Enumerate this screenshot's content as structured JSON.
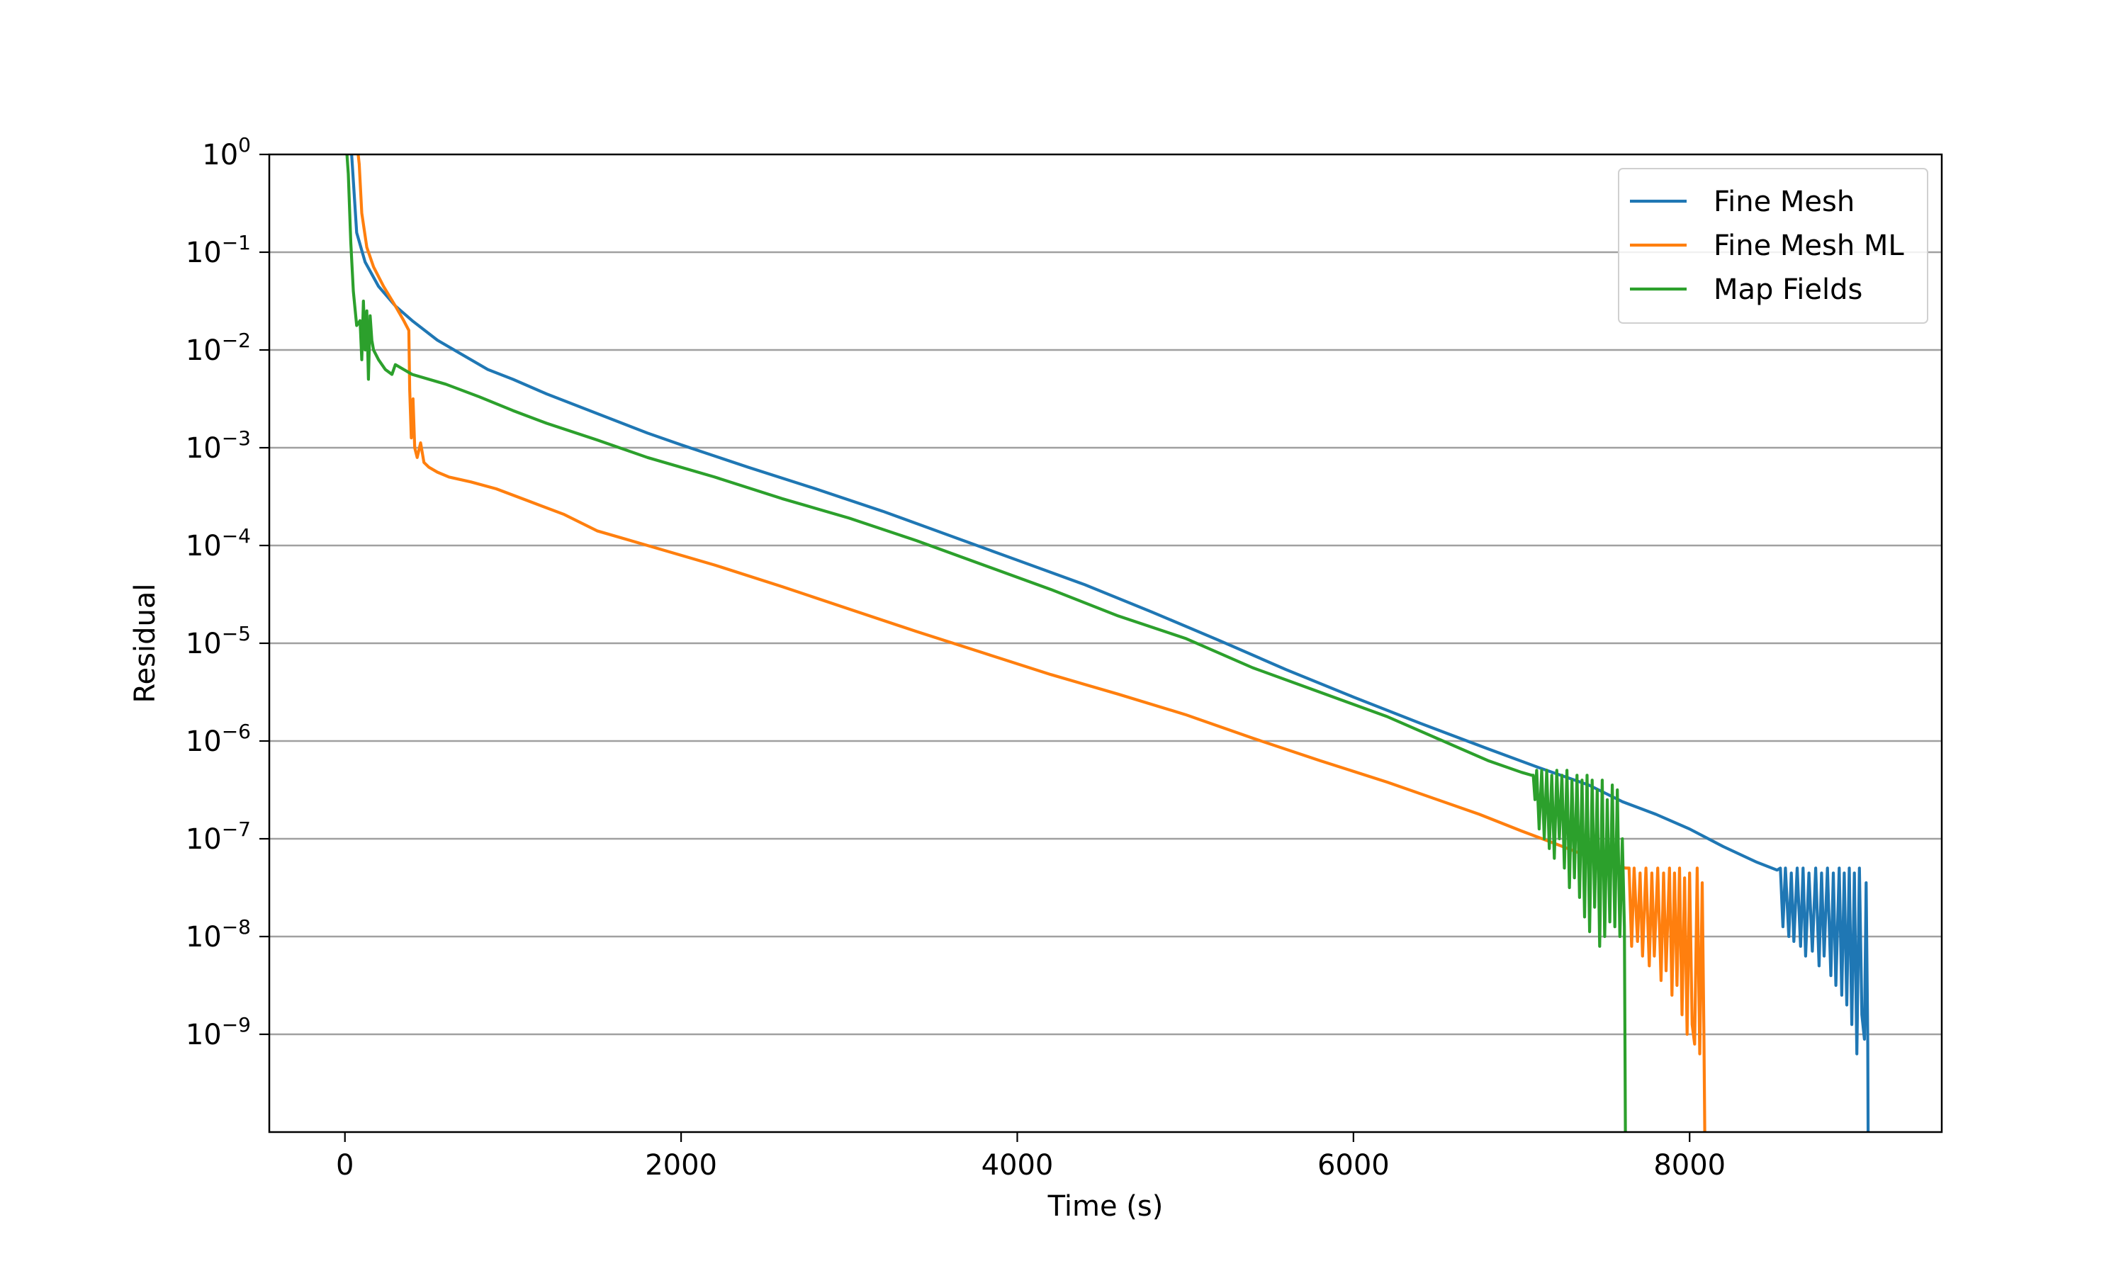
{
  "chart_data": {
    "type": "line",
    "title": "",
    "xlabel": "Time (s)",
    "ylabel": "Residual",
    "xlim": [
      -450,
      9500
    ],
    "ylim_log10": [
      -10,
      0
    ],
    "yscale": "log",
    "grid": "horizontal",
    "legend_position": "top-right",
    "x_ticks": [
      {
        "value": 0,
        "label": "0"
      },
      {
        "value": 2000,
        "label": "2000"
      },
      {
        "value": 4000,
        "label": "4000"
      },
      {
        "value": 6000,
        "label": "6000"
      },
      {
        "value": 8000,
        "label": "8000"
      }
    ],
    "y_ticks": [
      {
        "exp": 0,
        "base": "10",
        "sup": "0"
      },
      {
        "exp": -1,
        "base": "10",
        "sup": "−1"
      },
      {
        "exp": -2,
        "base": "10",
        "sup": "−2"
      },
      {
        "exp": -3,
        "base": "10",
        "sup": "−3"
      },
      {
        "exp": -4,
        "base": "10",
        "sup": "−4"
      },
      {
        "exp": -5,
        "base": "10",
        "sup": "−5"
      },
      {
        "exp": -6,
        "base": "10",
        "sup": "−6"
      },
      {
        "exp": -7,
        "base": "10",
        "sup": "−7"
      },
      {
        "exp": -8,
        "base": "10",
        "sup": "−8"
      },
      {
        "exp": -9,
        "base": "10",
        "sup": "−9"
      }
    ],
    "series": [
      {
        "name": "Fine Mesh",
        "color": "#1f77b4",
        "points": [
          [
            0,
            0.3
          ],
          [
            40,
            0.0
          ],
          [
            70,
            -0.8
          ],
          [
            120,
            -1.1
          ],
          [
            200,
            -1.35
          ],
          [
            300,
            -1.55
          ],
          [
            400,
            -1.7
          ],
          [
            550,
            -1.9
          ],
          [
            700,
            -2.05
          ],
          [
            850,
            -2.2
          ],
          [
            1000,
            -2.3
          ],
          [
            1200,
            -2.45
          ],
          [
            1500,
            -2.65
          ],
          [
            1800,
            -2.85
          ],
          [
            2000,
            -2.97
          ],
          [
            2400,
            -3.2
          ],
          [
            2800,
            -3.42
          ],
          [
            3200,
            -3.65
          ],
          [
            3600,
            -3.9
          ],
          [
            4000,
            -4.15
          ],
          [
            4400,
            -4.4
          ],
          [
            4800,
            -4.68
          ],
          [
            5200,
            -4.97
          ],
          [
            5600,
            -5.27
          ],
          [
            6000,
            -5.55
          ],
          [
            6400,
            -5.82
          ],
          [
            6800,
            -6.08
          ],
          [
            7100,
            -6.27
          ],
          [
            7400,
            -6.45
          ],
          [
            7600,
            -6.62
          ],
          [
            7800,
            -6.75
          ],
          [
            8000,
            -6.9
          ],
          [
            8200,
            -7.08
          ],
          [
            8400,
            -7.24
          ],
          [
            8520,
            -7.32
          ]
        ],
        "noise": {
          "x_start": 8520,
          "x_end": 9060,
          "points": [
            [
              8540,
              -7.3
            ],
            [
              8555,
              -7.9
            ],
            [
              8570,
              -7.3
            ],
            [
              8590,
              -8.0
            ],
            [
              8605,
              -7.35
            ],
            [
              8620,
              -8.05
            ],
            [
              8640,
              -7.3
            ],
            [
              8660,
              -8.1
            ],
            [
              8675,
              -7.3
            ],
            [
              8690,
              -8.2
            ],
            [
              8710,
              -7.35
            ],
            [
              8730,
              -8.15
            ],
            [
              8750,
              -7.3
            ],
            [
              8770,
              -8.3
            ],
            [
              8785,
              -7.35
            ],
            [
              8800,
              -8.2
            ],
            [
              8820,
              -7.3
            ],
            [
              8840,
              -8.4
            ],
            [
              8855,
              -7.35
            ],
            [
              8870,
              -8.5
            ],
            [
              8890,
              -7.3
            ],
            [
              8905,
              -8.6
            ],
            [
              8920,
              -7.35
            ],
            [
              8935,
              -8.7
            ],
            [
              8950,
              -7.3
            ],
            [
              8965,
              -8.9
            ],
            [
              8980,
              -7.35
            ],
            [
              8995,
              -9.2
            ],
            [
              9010,
              -7.3
            ],
            [
              9025,
              -8.8
            ],
            [
              9040,
              -9.05
            ],
            [
              9050,
              -7.45
            ],
            [
              9060,
              -9.1
            ],
            [
              9062,
              -10.0
            ]
          ]
        }
      },
      {
        "name": "Fine Mesh ML",
        "color": "#ff7f0e",
        "points": [
          [
            60,
            0.3
          ],
          [
            85,
            -0.1
          ],
          [
            100,
            -0.6
          ],
          [
            130,
            -0.95
          ],
          [
            170,
            -1.15
          ],
          [
            230,
            -1.35
          ],
          [
            300,
            -1.55
          ],
          [
            350,
            -1.7
          ],
          [
            380,
            -1.8
          ],
          [
            385,
            -2.4
          ],
          [
            395,
            -2.9
          ],
          [
            405,
            -2.5
          ],
          [
            415,
            -3.0
          ],
          [
            430,
            -3.1
          ],
          [
            450,
            -2.95
          ],
          [
            470,
            -3.15
          ],
          [
            500,
            -3.2
          ],
          [
            550,
            -3.25
          ],
          [
            620,
            -3.3
          ],
          [
            750,
            -3.35
          ],
          [
            900,
            -3.42
          ],
          [
            1100,
            -3.55
          ],
          [
            1300,
            -3.68
          ],
          [
            1500,
            -3.85
          ],
          [
            1800,
            -4.0
          ],
          [
            2200,
            -4.2
          ],
          [
            2600,
            -4.42
          ],
          [
            3000,
            -4.65
          ],
          [
            3400,
            -4.88
          ],
          [
            3800,
            -5.1
          ],
          [
            4200,
            -5.32
          ],
          [
            4600,
            -5.52
          ],
          [
            5000,
            -5.73
          ],
          [
            5400,
            -5.97
          ],
          [
            5800,
            -6.2
          ],
          [
            6200,
            -6.42
          ],
          [
            6500,
            -6.6
          ],
          [
            6750,
            -6.75
          ],
          [
            7000,
            -6.92
          ],
          [
            7200,
            -7.05
          ],
          [
            7350,
            -7.15
          ],
          [
            7500,
            -7.25
          ],
          [
            7620,
            -7.3
          ]
        ],
        "noise": {
          "x_start": 7620,
          "x_end": 8090,
          "points": [
            [
              7640,
              -7.3
            ],
            [
              7655,
              -8.1
            ],
            [
              7670,
              -7.3
            ],
            [
              7690,
              -8.05
            ],
            [
              7705,
              -7.35
            ],
            [
              7720,
              -8.2
            ],
            [
              7740,
              -7.3
            ],
            [
              7760,
              -8.3
            ],
            [
              7775,
              -7.35
            ],
            [
              7790,
              -8.2
            ],
            [
              7810,
              -7.3
            ],
            [
              7830,
              -8.45
            ],
            [
              7845,
              -7.35
            ],
            [
              7860,
              -8.35
            ],
            [
              7880,
              -7.3
            ],
            [
              7895,
              -8.6
            ],
            [
              7910,
              -7.35
            ],
            [
              7925,
              -8.5
            ],
            [
              7940,
              -7.3
            ],
            [
              7955,
              -8.8
            ],
            [
              7970,
              -7.4
            ],
            [
              7985,
              -9.0
            ],
            [
              8000,
              -7.35
            ],
            [
              8015,
              -8.9
            ],
            [
              8030,
              -9.1
            ],
            [
              8045,
              -7.3
            ],
            [
              8060,
              -9.2
            ],
            [
              8075,
              -7.45
            ],
            [
              8085,
              -9.0
            ],
            [
              8090,
              -10.0
            ]
          ]
        }
      },
      {
        "name": "Map Fields",
        "color": "#2ca02c",
        "points": [
          [
            0,
            0.3
          ],
          [
            20,
            -0.2
          ],
          [
            35,
            -0.9
          ],
          [
            50,
            -1.4
          ],
          [
            70,
            -1.75
          ],
          [
            90,
            -1.7
          ],
          [
            100,
            -2.1
          ],
          [
            110,
            -1.5
          ],
          [
            120,
            -2.0
          ],
          [
            130,
            -1.6
          ],
          [
            140,
            -2.3
          ],
          [
            150,
            -1.65
          ],
          [
            160,
            -1.9
          ],
          [
            170,
            -2.0
          ],
          [
            200,
            -2.1
          ],
          [
            240,
            -2.2
          ],
          [
            280,
            -2.25
          ],
          [
            300,
            -2.15
          ],
          [
            350,
            -2.2
          ],
          [
            400,
            -2.25
          ],
          [
            600,
            -2.35
          ],
          [
            800,
            -2.48
          ],
          [
            1000,
            -2.62
          ],
          [
            1200,
            -2.75
          ],
          [
            1500,
            -2.92
          ],
          [
            1800,
            -3.1
          ],
          [
            2200,
            -3.3
          ],
          [
            2600,
            -3.52
          ],
          [
            3000,
            -3.72
          ],
          [
            3400,
            -3.95
          ],
          [
            3800,
            -4.2
          ],
          [
            4200,
            -4.45
          ],
          [
            4600,
            -4.72
          ],
          [
            5000,
            -4.95
          ],
          [
            5400,
            -5.25
          ],
          [
            5800,
            -5.5
          ],
          [
            6200,
            -5.75
          ],
          [
            6400,
            -5.9
          ],
          [
            6600,
            -6.05
          ],
          [
            6800,
            -6.2
          ],
          [
            7000,
            -6.32
          ],
          [
            7060,
            -6.35
          ]
        ],
        "noise": {
          "x_start": 7060,
          "x_end": 7620,
          "points": [
            [
              7070,
              -6.35
            ],
            [
              7080,
              -6.6
            ],
            [
              7090,
              -6.3
            ],
            [
              7105,
              -6.9
            ],
            [
              7120,
              -6.3
            ],
            [
              7135,
              -7.0
            ],
            [
              7150,
              -6.3
            ],
            [
              7165,
              -7.1
            ],
            [
              7180,
              -6.35
            ],
            [
              7195,
              -7.2
            ],
            [
              7210,
              -6.3
            ],
            [
              7225,
              -7.0
            ],
            [
              7240,
              -6.35
            ],
            [
              7255,
              -7.3
            ],
            [
              7270,
              -6.3
            ],
            [
              7285,
              -7.5
            ],
            [
              7300,
              -6.4
            ],
            [
              7315,
              -7.4
            ],
            [
              7330,
              -6.35
            ],
            [
              7345,
              -7.6
            ],
            [
              7360,
              -6.4
            ],
            [
              7375,
              -7.8
            ],
            [
              7390,
              -6.35
            ],
            [
              7405,
              -7.95
            ],
            [
              7420,
              -6.4
            ],
            [
              7435,
              -7.7
            ],
            [
              7450,
              -6.5
            ],
            [
              7465,
              -8.1
            ],
            [
              7480,
              -6.4
            ],
            [
              7495,
              -8.0
            ],
            [
              7510,
              -6.6
            ],
            [
              7525,
              -7.85
            ],
            [
              7540,
              -6.45
            ],
            [
              7555,
              -7.9
            ],
            [
              7570,
              -6.5
            ],
            [
              7585,
              -8.0
            ],
            [
              7600,
              -7.0
            ],
            [
              7612,
              -7.9
            ],
            [
              7618,
              -10.0
            ]
          ]
        }
      }
    ]
  }
}
